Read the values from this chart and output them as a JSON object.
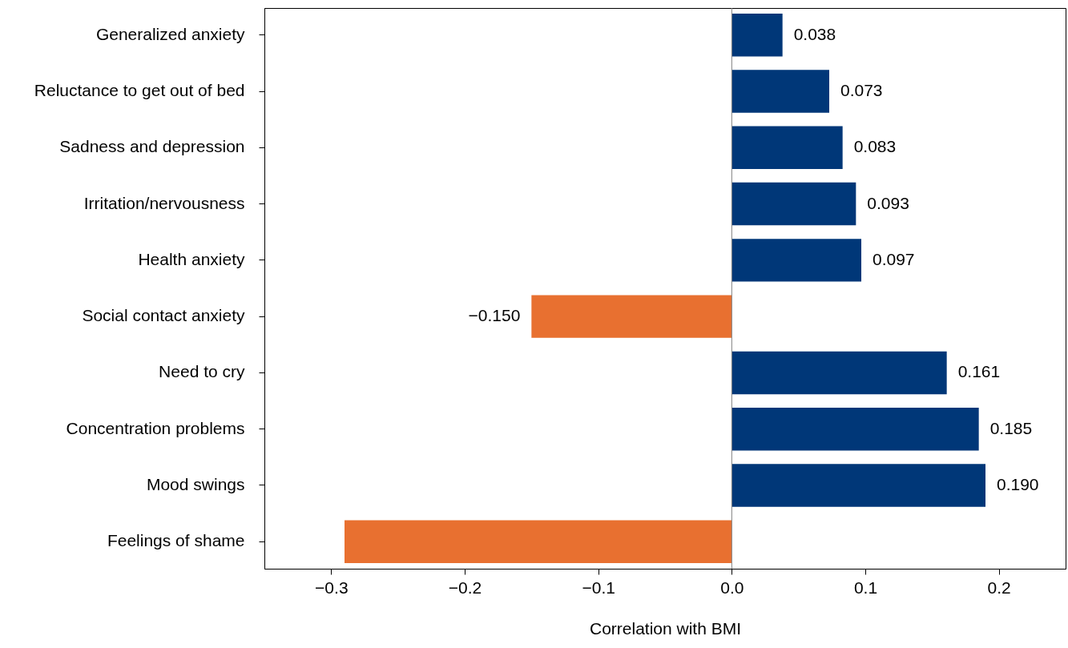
{
  "chart_data": {
    "type": "bar",
    "orientation": "horizontal",
    "xlabel": "Correlation with BMI",
    "categories": [
      "Generalized anxiety",
      "Reluctance to get out of bed",
      "Sadness and depression",
      "Irritation/nervousness",
      "Health anxiety",
      "Social contact anxiety",
      "Need to cry",
      "Concentration problems",
      "Mood swings",
      "Feelings of shame"
    ],
    "values": [
      0.038,
      0.073,
      0.083,
      0.093,
      0.097,
      -0.15,
      0.161,
      0.185,
      0.19,
      -0.29
    ],
    "value_labels": [
      "0.038",
      "0.073",
      "0.083",
      "0.093",
      "0.097",
      "−0.150",
      "0.161",
      "0.185",
      "0.190",
      null
    ],
    "colors": [
      "#003778",
      "#003778",
      "#003778",
      "#003778",
      "#003778",
      "#e87030",
      "#003778",
      "#003778",
      "#003778",
      "#e87030"
    ],
    "xlim": [
      -0.35,
      0.25
    ],
    "xticks": [
      {
        "value": -0.3,
        "label": "−0.3"
      },
      {
        "value": -0.2,
        "label": "−0.2"
      },
      {
        "value": -0.1,
        "label": "−0.1"
      },
      {
        "value": 0,
        "label": "0.0"
      },
      {
        "value": 0.1,
        "label": "0.1"
      },
      {
        "value": 0.2,
        "label": "0.2"
      }
    ],
    "ref_lines": [
      {
        "axis": "x",
        "value": 0,
        "color": "#808080"
      }
    ]
  }
}
